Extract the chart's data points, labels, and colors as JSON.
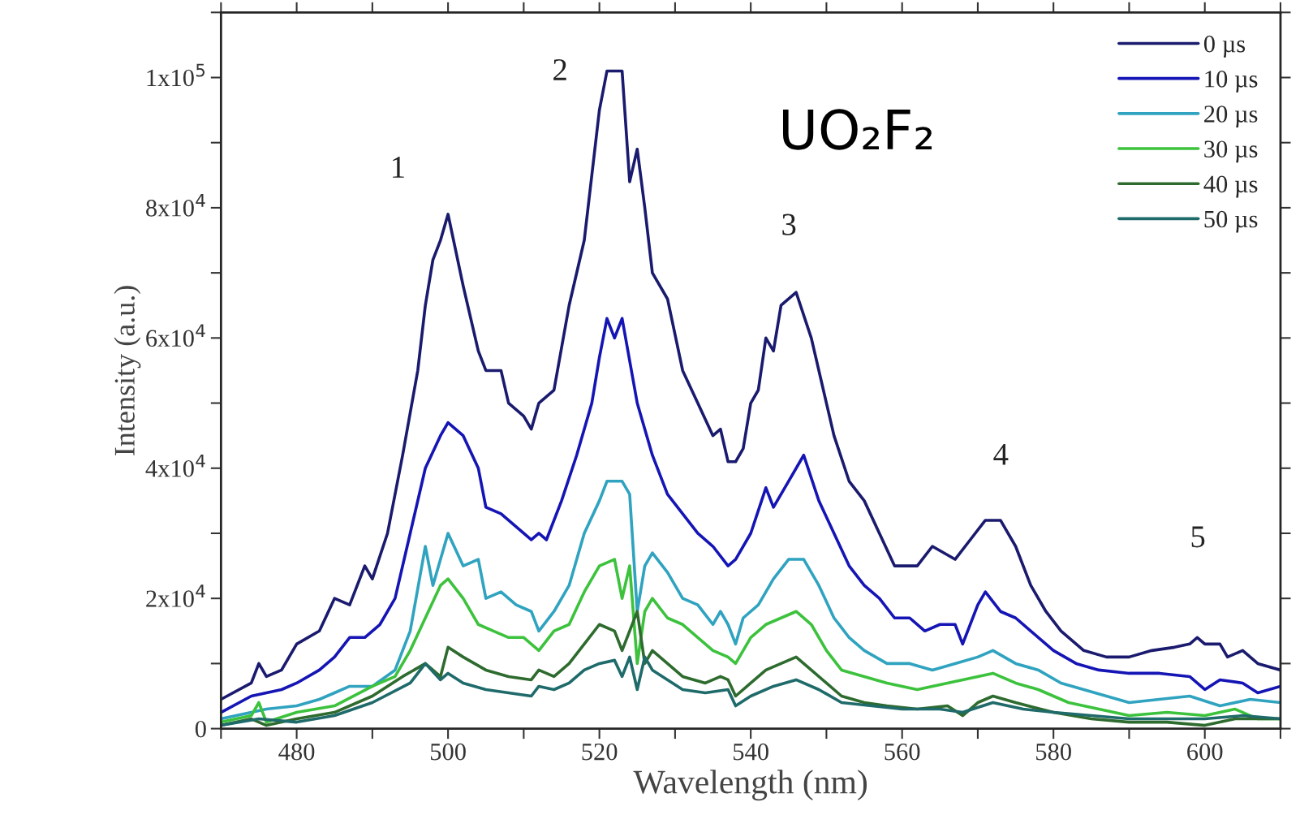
{
  "chart_data": {
    "type": "line",
    "xlabel": "Wavelength (nm)",
    "ylabel": "Intensity (a.u.)",
    "xlim": [
      470,
      610
    ],
    "ylim": [
      0,
      110000
    ],
    "xticks": [
      {
        "value": 470,
        "label": null
      },
      480,
      {
        "value": 490,
        "label": null
      },
      500,
      {
        "value": 510,
        "label": null
      },
      520,
      {
        "value": 530,
        "label": null
      },
      540,
      {
        "value": 550,
        "label": null
      },
      560,
      {
        "value": 570,
        "label": null
      },
      580,
      {
        "value": 590,
        "label": null
      },
      600,
      {
        "value": 610,
        "label": null
      }
    ],
    "yticks": [
      0,
      {
        "value": 10000,
        "label": null
      },
      {
        "value": 20000,
        "label": "2x10$^{4}$"
      },
      {
        "value": 30000,
        "label": null
      },
      {
        "value": 40000,
        "label": "4x10$^{4}$"
      },
      {
        "value": 50000,
        "label": null
      },
      {
        "value": 60000,
        "label": "6x10$^{4}$"
      },
      {
        "value": 70000,
        "label": null
      },
      {
        "value": 80000,
        "label": "8x10$^{4}$"
      },
      {
        "value": 90000,
        "label": null
      },
      {
        "value": 100000,
        "label": "1x10$^{5}$"
      },
      {
        "value": 110000,
        "label": null
      }
    ],
    "grid": false,
    "legend": "top right",
    "marker": "none",
    "line_style": "solid",
    "annotations": [
      "UO₂F₂",
      "1",
      "2",
      "3",
      "4",
      "5"
    ],
    "series": [
      {
        "name": "0 µs",
        "color": "#1a1a6e",
        "x": [
          470,
          474,
          475,
          476,
          478,
          480,
          483,
          485,
          487,
          489,
          490,
          492,
          494,
          496,
          497,
          498,
          499,
          500,
          502,
          504,
          505,
          507,
          508,
          510,
          511,
          512,
          514,
          516,
          518,
          520,
          521,
          523,
          524,
          525,
          526,
          527,
          529,
          531,
          533,
          535,
          536,
          537,
          538,
          539,
          540,
          541,
          542,
          543,
          544,
          545,
          546,
          548,
          550,
          551,
          553,
          555,
          557,
          559,
          562,
          564,
          567,
          569,
          571,
          573,
          575,
          577,
          579,
          581,
          584,
          587,
          590,
          593,
          596,
          598,
          599,
          600,
          602,
          603,
          605,
          607,
          610
        ],
        "values": [
          4500,
          7000,
          10000,
          8000,
          9000,
          13000,
          15000,
          20000,
          19000,
          25000,
          23000,
          30000,
          42000,
          55000,
          65000,
          72000,
          75000,
          79000,
          68000,
          58000,
          55000,
          55000,
          50000,
          48000,
          46000,
          50000,
          52000,
          65000,
          75000,
          95000,
          101000,
          101000,
          84000,
          89000,
          80000,
          70000,
          66000,
          55000,
          50000,
          45000,
          46000,
          41000,
          41000,
          43000,
          50000,
          52000,
          60000,
          58000,
          65000,
          66000,
          67000,
          60000,
          50000,
          45000,
          38000,
          35000,
          30000,
          25000,
          25000,
          28000,
          26000,
          29000,
          32000,
          32000,
          28000,
          22000,
          18000,
          15000,
          12000,
          11000,
          11000,
          12000,
          12500,
          13000,
          14000,
          13000,
          13000,
          11000,
          12000,
          10000,
          9000
        ]
      },
      {
        "name": "10 µs",
        "color": "#1515b5",
        "x": [
          470,
          474,
          476,
          478,
          480,
          483,
          485,
          487,
          489,
          491,
          493,
          495,
          497,
          499,
          500,
          502,
          504,
          505,
          507,
          509,
          511,
          512,
          513,
          515,
          517,
          519,
          520,
          521,
          522,
          523,
          525,
          527,
          529,
          531,
          533,
          535,
          537,
          538,
          540,
          542,
          543,
          545,
          547,
          549,
          551,
          553,
          555,
          557,
          559,
          561,
          563,
          565,
          567,
          568,
          570,
          571,
          573,
          575,
          577,
          580,
          583,
          586,
          590,
          594,
          598,
          600,
          602,
          605,
          607,
          610
        ],
        "values": [
          2500,
          5000,
          5500,
          6000,
          7000,
          9000,
          11000,
          14000,
          14000,
          16000,
          20000,
          30000,
          40000,
          45000,
          47000,
          45000,
          40000,
          34000,
          33000,
          31000,
          29000,
          30000,
          29000,
          35000,
          42000,
          50000,
          57000,
          63000,
          60000,
          63000,
          50000,
          42000,
          36000,
          33000,
          30000,
          28000,
          25000,
          26000,
          30000,
          37000,
          34000,
          38000,
          42000,
          35000,
          30000,
          25000,
          22000,
          20000,
          17000,
          17000,
          15000,
          16000,
          16000,
          13000,
          19000,
          21000,
          18000,
          17000,
          15000,
          12000,
          10000,
          9000,
          8500,
          8500,
          8000,
          6000,
          7500,
          7000,
          5500,
          6500
        ]
      },
      {
        "name": "20 µs",
        "color": "#2fa3bf",
        "x": [
          470,
          474,
          476,
          480,
          483,
          485,
          487,
          490,
          493,
          495,
          497,
          498,
          500,
          502,
          504,
          505,
          507,
          509,
          511,
          512,
          514,
          516,
          518,
          520,
          521,
          523,
          524,
          525,
          526,
          527,
          529,
          531,
          533,
          535,
          536,
          537,
          538,
          539,
          541,
          543,
          545,
          547,
          549,
          551,
          553,
          555,
          558,
          561,
          564,
          567,
          570,
          572,
          575,
          578,
          581,
          584,
          587,
          590,
          594,
          598,
          602,
          606,
          610
        ],
        "values": [
          1500,
          2500,
          3000,
          3500,
          4500,
          5500,
          6500,
          6500,
          9000,
          15000,
          28000,
          22000,
          30000,
          25000,
          26000,
          20000,
          21000,
          19000,
          18000,
          15000,
          18000,
          22000,
          30000,
          35000,
          38000,
          38000,
          36000,
          18000,
          25000,
          27000,
          24000,
          20000,
          19000,
          16000,
          18000,
          16000,
          13000,
          17000,
          19000,
          23000,
          26000,
          26000,
          22000,
          17000,
          14000,
          12000,
          10000,
          10000,
          9000,
          10000,
          11000,
          12000,
          10000,
          9000,
          7000,
          6000,
          5000,
          4000,
          4500,
          5000,
          3500,
          4500,
          4000
        ]
      },
      {
        "name": "30 µs",
        "color": "#3cc23c",
        "x": [
          470,
          474,
          475,
          476,
          480,
          485,
          490,
          493,
          495,
          497,
          499,
          500,
          502,
          504,
          506,
          508,
          510,
          512,
          514,
          516,
          518,
          520,
          522,
          523,
          524,
          525,
          526,
          527,
          529,
          531,
          533,
          535,
          537,
          538,
          540,
          542,
          544,
          546,
          548,
          550,
          552,
          555,
          558,
          562,
          566,
          570,
          572,
          575,
          578,
          582,
          586,
          590,
          595,
          600,
          604,
          607,
          610
        ],
        "values": [
          1000,
          2000,
          4000,
          1000,
          2500,
          3500,
          6500,
          8000,
          12000,
          17000,
          22000,
          23000,
          20000,
          16000,
          15000,
          14000,
          14000,
          12000,
          15000,
          16000,
          21000,
          25000,
          26000,
          20000,
          25000,
          10000,
          18000,
          20000,
          17000,
          16000,
          14000,
          12000,
          11000,
          10000,
          14000,
          16000,
          17000,
          18000,
          16000,
          12000,
          9000,
          8000,
          7000,
          6000,
          7000,
          8000,
          8500,
          7000,
          6000,
          4000,
          3000,
          2000,
          2500,
          2000,
          3000,
          1500,
          1500
        ]
      },
      {
        "name": "40 µs",
        "color": "#2e6b2e",
        "x": [
          470,
          474,
          476,
          480,
          485,
          490,
          494,
          497,
          499,
          500,
          502,
          505,
          508,
          511,
          512,
          514,
          516,
          518,
          520,
          522,
          523,
          525,
          526,
          527,
          529,
          531,
          534,
          536,
          537,
          538,
          540,
          542,
          544,
          546,
          548,
          550,
          552,
          555,
          558,
          562,
          566,
          568,
          570,
          572,
          575,
          580,
          585,
          590,
          595,
          600,
          604,
          610
        ],
        "values": [
          500,
          1500,
          500,
          1500,
          2500,
          5000,
          8000,
          10000,
          8000,
          12500,
          11000,
          9000,
          8000,
          7500,
          9000,
          8000,
          10000,
          13000,
          16000,
          15000,
          12000,
          18000,
          10000,
          12000,
          10000,
          8000,
          7000,
          8000,
          7500,
          5000,
          7000,
          9000,
          10000,
          11000,
          9000,
          7000,
          5000,
          4000,
          3500,
          3000,
          3500,
          2000,
          4000,
          5000,
          4000,
          2500,
          1500,
          1000,
          1000,
          500,
          1500,
          1500
        ]
      },
      {
        "name": "50 µs",
        "color": "#1f6a6a",
        "x": [
          470,
          475,
          480,
          485,
          490,
          495,
          497,
          499,
          500,
          502,
          505,
          508,
          511,
          512,
          514,
          516,
          518,
          520,
          522,
          523,
          524,
          525,
          526,
          527,
          529,
          531,
          534,
          537,
          538,
          540,
          543,
          546,
          549,
          552,
          556,
          560,
          565,
          568,
          572,
          576,
          580,
          585,
          590,
          595,
          600,
          605,
          610
        ],
        "values": [
          500,
          1500,
          1000,
          2000,
          4000,
          7000,
          10000,
          7500,
          8500,
          7000,
          6000,
          5500,
          5000,
          6500,
          6000,
          7000,
          9000,
          10000,
          10500,
          8000,
          11000,
          6000,
          11000,
          9000,
          7500,
          6000,
          5500,
          6000,
          3500,
          5000,
          6500,
          7500,
          6000,
          4000,
          3500,
          3000,
          3000,
          2500,
          4000,
          3000,
          2500,
          2000,
          1500,
          1500,
          1500,
          2000,
          1500
        ]
      }
    ]
  }
}
